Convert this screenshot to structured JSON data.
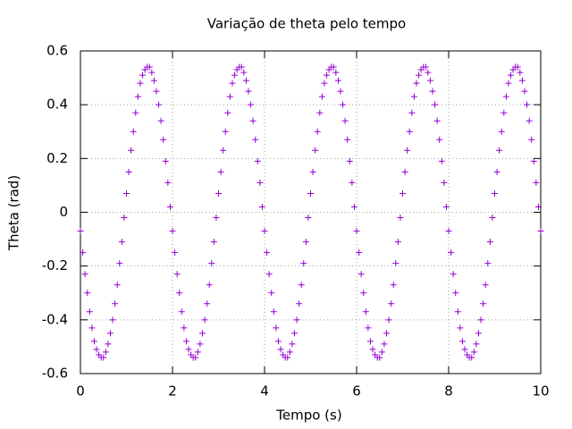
{
  "chart_data": {
    "type": "scatter",
    "title": "Variação de theta pelo tempo",
    "x_label": "Tempo (s)",
    "y_label": "Theta (rad)",
    "xlim": [
      0,
      10
    ],
    "ylim": [
      -0.6,
      0.6
    ],
    "xticks": [
      0,
      2,
      4,
      6,
      8,
      10
    ],
    "yticks": [
      -0.6,
      -0.4,
      -0.2,
      0,
      0.2,
      0.4,
      0.6
    ],
    "grid": true,
    "series": [
      {
        "color": "#9400d3",
        "x": [
          0,
          0.05,
          0.1,
          0.15,
          0.2,
          0.25,
          0.3,
          0.35,
          0.4,
          0.45,
          0.5,
          0.55,
          0.6,
          0.65,
          0.7,
          0.75,
          0.8,
          0.85,
          0.9,
          0.95,
          1,
          1.05,
          1.1,
          1.15,
          1.2,
          1.25,
          1.3,
          1.35,
          1.4,
          1.45,
          1.5,
          1.55,
          1.6,
          1.65,
          1.7,
          1.75,
          1.8,
          1.85,
          1.9,
          1.95,
          2,
          2.05,
          2.1,
          2.15,
          2.2,
          2.25,
          2.3,
          2.35,
          2.4,
          2.45,
          2.5,
          2.55,
          2.6,
          2.65,
          2.7,
          2.75,
          2.8,
          2.85,
          2.9,
          2.95,
          3,
          3.05,
          3.1,
          3.15,
          3.2,
          3.25,
          3.3,
          3.35,
          3.4,
          3.45,
          3.5,
          3.55,
          3.6,
          3.65,
          3.7,
          3.75,
          3.8,
          3.85,
          3.9,
          3.95,
          4,
          4.05,
          4.1,
          4.15,
          4.2,
          4.25,
          4.3,
          4.35,
          4.4,
          4.45,
          4.5,
          4.55,
          4.6,
          4.65,
          4.7,
          4.75,
          4.8,
          4.85,
          4.9,
          4.95,
          5,
          5.05,
          5.1,
          5.15,
          5.2,
          5.25,
          5.3,
          5.35,
          5.4,
          5.45,
          5.5,
          5.55,
          5.6,
          5.65,
          5.7,
          5.75,
          5.8,
          5.85,
          5.9,
          5.95,
          6,
          6.05,
          6.1,
          6.15,
          6.2,
          6.25,
          6.3,
          6.35,
          6.4,
          6.45,
          6.5,
          6.55,
          6.6,
          6.65,
          6.7,
          6.75,
          6.8,
          6.85,
          6.9,
          6.95,
          7,
          7.05,
          7.1,
          7.15,
          7.2,
          7.25,
          7.3,
          7.35,
          7.4,
          7.45,
          7.5,
          7.55,
          7.6,
          7.65,
          7.7,
          7.75,
          7.8,
          7.85,
          7.9,
          7.95,
          8,
          8.05,
          8.1,
          8.15,
          8.2,
          8.25,
          8.3,
          8.35,
          8.4,
          8.45,
          8.5,
          8.55,
          8.6,
          8.65,
          8.7,
          8.75,
          8.8,
          8.85,
          8.9,
          8.95,
          9,
          9.05,
          9.1,
          9.15,
          9.2,
          9.25,
          9.3,
          9.35,
          9.4,
          9.45,
          9.5,
          9.55,
          9.6,
          9.65,
          9.7,
          9.75,
          9.8,
          9.85,
          9.9,
          9.95,
          10
        ],
        "values": [
          -0.07,
          -0.15,
          -0.23,
          -0.3,
          -0.37,
          -0.43,
          -0.48,
          -0.51,
          -0.53,
          -0.54,
          -0.54,
          -0.52,
          -0.49,
          -0.45,
          -0.4,
          -0.34,
          -0.27,
          -0.19,
          -0.11,
          -0.02,
          0.07,
          0.15,
          0.23,
          0.3,
          0.37,
          0.43,
          0.48,
          0.51,
          0.53,
          0.54,
          0.54,
          0.52,
          0.49,
          0.45,
          0.4,
          0.34,
          0.27,
          0.19,
          0.11,
          0.02,
          -0.07,
          -0.15,
          -0.23,
          -0.3,
          -0.37,
          -0.43,
          -0.48,
          -0.51,
          -0.53,
          -0.54,
          -0.54,
          -0.52,
          -0.49,
          -0.45,
          -0.4,
          -0.34,
          -0.27,
          -0.19,
          -0.11,
          -0.02,
          0.07,
          0.15,
          0.23,
          0.3,
          0.37,
          0.43,
          0.48,
          0.51,
          0.53,
          0.54,
          0.54,
          0.52,
          0.49,
          0.45,
          0.4,
          0.34,
          0.27,
          0.19,
          0.11,
          0.02,
          -0.07,
          -0.15,
          -0.23,
          -0.3,
          -0.37,
          -0.43,
          -0.48,
          -0.51,
          -0.53,
          -0.54,
          -0.54,
          -0.52,
          -0.49,
          -0.45,
          -0.4,
          -0.34,
          -0.27,
          -0.19,
          -0.11,
          -0.02,
          0.07,
          0.15,
          0.23,
          0.3,
          0.37,
          0.43,
          0.48,
          0.51,
          0.53,
          0.54,
          0.54,
          0.52,
          0.49,
          0.45,
          0.4,
          0.34,
          0.27,
          0.19,
          0.11,
          0.02,
          -0.07,
          -0.15,
          -0.23,
          -0.3,
          -0.37,
          -0.43,
          -0.48,
          -0.51,
          -0.53,
          -0.54,
          -0.54,
          -0.52,
          -0.49,
          -0.45,
          -0.4,
          -0.34,
          -0.27,
          -0.19,
          -0.11,
          -0.02,
          0.07,
          0.15,
          0.23,
          0.3,
          0.37,
          0.43,
          0.48,
          0.51,
          0.53,
          0.54,
          0.54,
          0.52,
          0.49,
          0.45,
          0.4,
          0.34,
          0.27,
          0.19,
          0.11,
          0.02,
          -0.07,
          -0.15,
          -0.23,
          -0.3,
          -0.37,
          -0.43,
          -0.48,
          -0.51,
          -0.53,
          -0.54,
          -0.54,
          -0.52,
          -0.49,
          -0.45,
          -0.4,
          -0.34,
          -0.27,
          -0.19,
          -0.11,
          -0.02,
          0.07,
          0.15,
          0.23,
          0.3,
          0.37,
          0.43,
          0.48,
          0.51,
          0.53,
          0.54,
          0.54,
          0.52,
          0.49,
          0.45,
          0.4,
          0.34,
          0.27,
          0.19,
          0.11,
          0.02,
          -0.07
        ]
      }
    ]
  }
}
